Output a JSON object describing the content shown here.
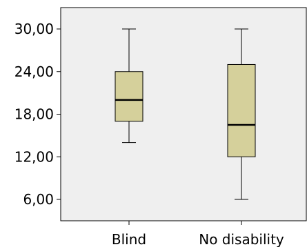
{
  "chart_data": {
    "type": "boxplot",
    "title": "",
    "xlabel": "",
    "ylabel": "",
    "ylim": [
      3,
      33
    ],
    "yticks": [
      6,
      12,
      18,
      24,
      30
    ],
    "ytick_labels": [
      "6,00",
      "12,00",
      "18,00",
      "24,00",
      "30,00"
    ],
    "categories": [
      "Blind",
      "No disability"
    ],
    "boxes": [
      {
        "category": "Blind",
        "whisker_low": 14,
        "q1": 17,
        "median": 20,
        "q3": 24,
        "whisker_high": 30
      },
      {
        "category": "No disability",
        "whisker_low": 6,
        "q1": 12,
        "median": 16.5,
        "q3": 25,
        "whisker_high": 30
      }
    ],
    "grid": false,
    "legend": "none"
  },
  "colors": {
    "plot_background": "#efefef",
    "box_fill": "#d5d09b",
    "stroke": "#000000"
  }
}
